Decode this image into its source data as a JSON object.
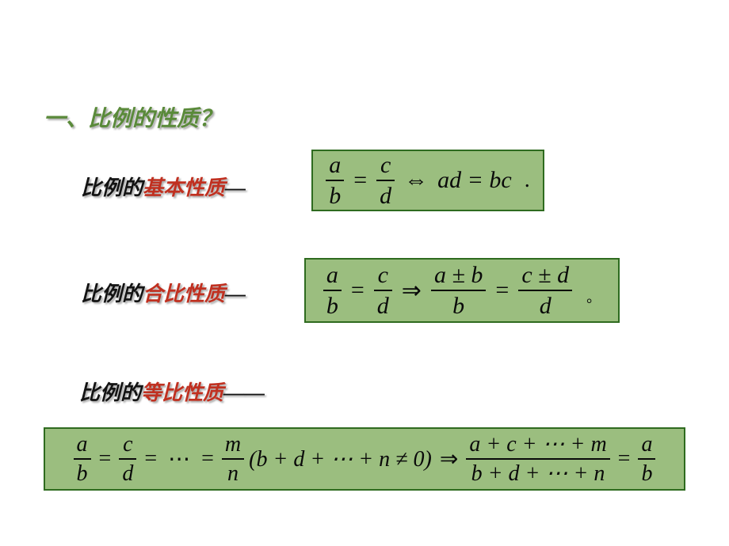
{
  "heading": "一、比例的性质？",
  "labels": {
    "basic": {
      "pre": "比例的",
      "accent": "基本性质",
      "suffix": "—"
    },
    "combine": {
      "pre": "比例的",
      "accent": "合比性质",
      "suffix": "—"
    },
    "equal": {
      "pre": "比例的",
      "accent": "等比性质",
      "suffix": "——"
    }
  },
  "formulas": {
    "basic": {
      "fracs": [
        {
          "num": "a",
          "den": "b"
        },
        {
          "num": "c",
          "den": "d"
        }
      ],
      "iff": "⇔",
      "rhs": "ad = bc",
      "end": "."
    },
    "combine": {
      "fracs_left": [
        {
          "num": "a",
          "den": "b"
        },
        {
          "num": "c",
          "den": "d"
        }
      ],
      "imply": "⇒",
      "fracs_right": [
        {
          "num": "a ± b",
          "den": "b"
        },
        {
          "num": "c ± d",
          "den": "d"
        }
      ],
      "end": "。"
    },
    "equal": {
      "fracs_chain": [
        {
          "num": "a",
          "den": "b"
        },
        {
          "num": "c",
          "den": "d"
        },
        {
          "num": "m",
          "den": "n"
        }
      ],
      "dots": "⋯",
      "cond": "(b + d + ⋯ + n ≠ 0)",
      "imply": "⇒",
      "frac_sum": {
        "num": "a + c + ⋯ + m",
        "den": "b + d + ⋯ + n"
      },
      "frac_final": {
        "num": "a",
        "den": "b"
      }
    }
  },
  "style": {
    "background": "#ffffff",
    "box_bg": "#9bbe7f",
    "box_border": "#2e6b1f",
    "heading_color": "#5a8a3a",
    "accent_color": "#c03020",
    "text_color": "#131313",
    "heading_fontsize": 28,
    "label_fontsize": 26,
    "formula_fontsize": 30,
    "formula3_fontsize": 28
  }
}
